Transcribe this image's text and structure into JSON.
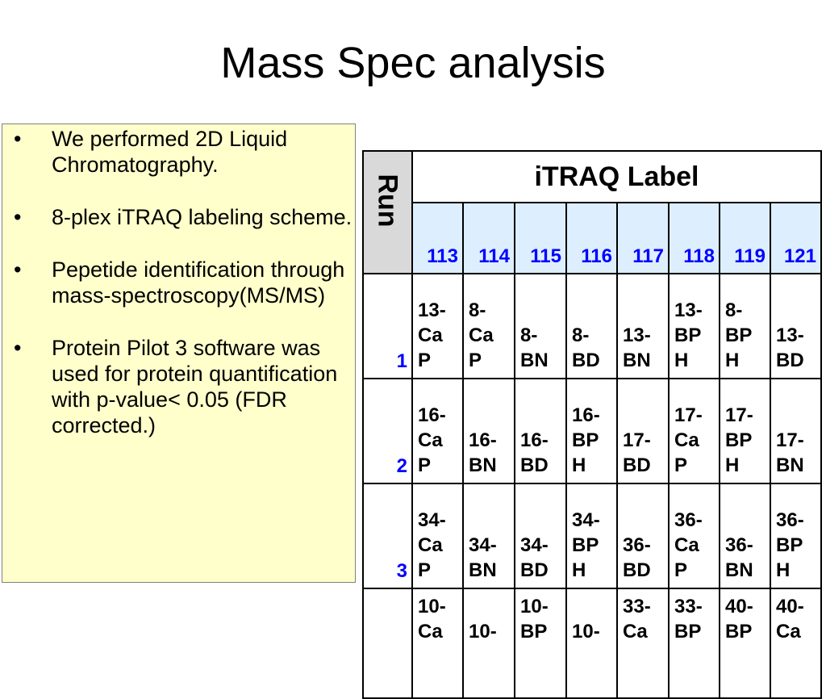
{
  "slide": {
    "title": "Mass Spec analysis",
    "bullets": [
      "We performed 2D Liquid Chromatography.",
      "8-plex iTRAQ labeling scheme.",
      "Pepetide identification through mass-spectroscopy(MS/MS)",
      "Protein Pilot 3 software was used for protein quantification with p-value< 0.05 (FDR corrected.)"
    ]
  },
  "table": {
    "run_header": "Run",
    "label_header": "iTRAQ Label",
    "labels": [
      [
        "11",
        "3"
      ],
      [
        "114"
      ],
      [
        "115"
      ],
      [
        "11",
        "6"
      ],
      [
        "117"
      ],
      [
        "118"
      ],
      [
        "11",
        "9"
      ],
      [
        "12",
        "1"
      ]
    ],
    "rows": [
      {
        "run": "1",
        "cells": [
          [
            "13-",
            "Ca",
            "P"
          ],
          [
            "8-",
            "Ca",
            "P"
          ],
          [
            "8-",
            "BN"
          ],
          [
            "8-",
            "BD"
          ],
          [
            "13-",
            "BN"
          ],
          [
            "13-",
            "BP",
            "H"
          ],
          [
            "8-",
            "BP",
            "H"
          ],
          [
            "13-",
            "BD"
          ]
        ]
      },
      {
        "run": "2",
        "cells": [
          [
            "16-",
            "Ca",
            "P"
          ],
          [
            "16-",
            "BN"
          ],
          [
            "16-",
            "BD"
          ],
          [
            "16-",
            "BP",
            "H"
          ],
          [
            "17-",
            "BD"
          ],
          [
            "17-",
            "Ca",
            "P"
          ],
          [
            "17-",
            "BP",
            "H"
          ],
          [
            "17-",
            "BN"
          ]
        ]
      },
      {
        "run": "3",
        "cells": [
          [
            "34-",
            "Ca",
            "P"
          ],
          [
            "34-",
            "BN"
          ],
          [
            "34-",
            "BD"
          ],
          [
            "34-",
            "BP",
            "H"
          ],
          [
            "36-",
            "BD"
          ],
          [
            "36-",
            "Ca",
            "P"
          ],
          [
            "36-",
            "BN"
          ],
          [
            "36-",
            "BP",
            "H"
          ]
        ]
      },
      {
        "run": "",
        "cells": [
          [
            "10-",
            "Ca"
          ],
          [
            "",
            "10-"
          ],
          [
            "10-",
            "BP"
          ],
          [
            "",
            "10-"
          ],
          [
            "33-",
            "Ca"
          ],
          [
            "33-",
            "BP"
          ],
          [
            "40-",
            "BP"
          ],
          [
            "40-",
            "Ca"
          ]
        ]
      }
    ]
  }
}
